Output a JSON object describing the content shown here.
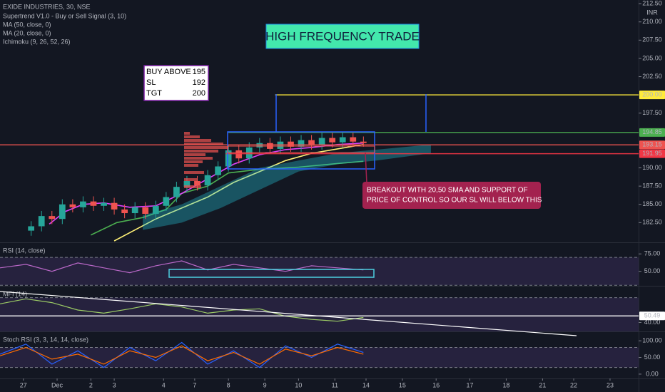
{
  "chart_data": [
    {
      "type": "candlestick",
      "title": "EXIDE INDUSTRIES, 30, NSE",
      "currency": "INR",
      "xlim": [
        0,
        246
      ],
      "ylim": [
        179.8,
        213
      ],
      "yticks": [
        {
          "value": 212.5,
          "label": "212.50"
        },
        {
          "value": 210,
          "label": "210.00"
        },
        {
          "value": 207.5,
          "label": "207.50"
        },
        {
          "value": 205,
          "label": "205.00"
        },
        {
          "value": 202.5,
          "label": "202.50"
        },
        {
          "value": 197.5,
          "label": "197.50"
        },
        {
          "value": 190,
          "label": "190.00"
        },
        {
          "value": 187.5,
          "label": "187.50"
        },
        {
          "value": 185,
          "label": "185.00"
        },
        {
          "value": 182.5,
          "label": "182.50"
        }
      ],
      "up_color": "#26a69a",
      "down_color": "#ef5350",
      "x": [
        12,
        16,
        20,
        24,
        28,
        32,
        36,
        40,
        44,
        48,
        52,
        56,
        60,
        64,
        68,
        72,
        76,
        80,
        84,
        88,
        92,
        96,
        100,
        104,
        108,
        112,
        116,
        120,
        124,
        128,
        132,
        136,
        140
      ],
      "open": [
        181.4,
        182.0,
        183.4,
        183.0,
        185.0,
        184.6,
        185.4,
        184.8,
        185.2,
        184.3,
        183.8,
        184.6,
        183.7,
        184.8,
        186.0,
        187.4,
        188.2,
        187.6,
        189.0,
        190.2,
        192.4,
        191.3,
        192.8,
        193.4,
        192.6,
        193.6,
        192.9,
        193.8,
        193.2,
        194.1,
        193.5,
        194.2,
        193.6
      ],
      "high": [
        182.7,
        184.1,
        184.1,
        185.7,
        185.7,
        186.1,
        186.1,
        185.9,
        185.9,
        185.0,
        185.3,
        185.3,
        185.5,
        186.7,
        188.1,
        188.9,
        188.9,
        189.7,
        190.9,
        193.1,
        193.1,
        193.5,
        194.1,
        194.1,
        194.3,
        194.3,
        194.5,
        194.5,
        194.8,
        194.8,
        194.9,
        194.9,
        194.3
      ],
      "low": [
        180.7,
        181.3,
        182.3,
        182.3,
        183.9,
        183.9,
        184.1,
        184.1,
        183.6,
        183.1,
        183.1,
        183.0,
        183.0,
        184.1,
        185.3,
        186.7,
        186.9,
        186.9,
        188.3,
        189.5,
        190.6,
        190.6,
        192.1,
        191.9,
        191.9,
        192.2,
        192.2,
        192.5,
        192.5,
        192.8,
        192.8,
        192.9,
        192.9
      ],
      "close": [
        182.0,
        183.4,
        183.0,
        185.0,
        184.6,
        185.4,
        184.8,
        185.2,
        184.3,
        183.8,
        184.6,
        183.7,
        184.8,
        186.0,
        187.4,
        188.2,
        187.6,
        189.0,
        190.2,
        192.4,
        191.3,
        192.8,
        193.4,
        192.6,
        193.6,
        192.9,
        193.8,
        193.2,
        194.1,
        193.5,
        194.2,
        193.6,
        193.4
      ],
      "series": [
        {
          "name": "Supertrend V1.0 - Buy or Sell Signal (3, 10)",
          "color": "#4caf50",
          "x": [
            35,
            45,
            55,
            64,
            70,
            80,
            88,
            100,
            115,
            130,
            140
          ],
          "values": [
            180.8,
            182.5,
            183.2,
            184.3,
            186.5,
            187.5,
            189.3,
            189.8,
            190.1,
            190.6,
            190.9
          ]
        },
        {
          "name": "MA (50, close, 0)",
          "color": "#fff176",
          "x": [
            44,
            52,
            60,
            70,
            80,
            90,
            100,
            110,
            120,
            130,
            140
          ],
          "values": [
            180,
            181.5,
            183,
            184.5,
            186,
            188,
            189.5,
            191,
            192,
            192.6,
            193.2
          ]
        },
        {
          "name": "MA (20, close, 0)",
          "color": "#e040fb",
          "x": [
            19,
            25,
            32,
            40,
            50,
            60,
            70,
            80,
            90,
            100,
            110,
            120,
            130,
            140
          ],
          "values": [
            182.3,
            184,
            185,
            185.2,
            184.6,
            184.8,
            186.5,
            188.5,
            190.5,
            191.8,
            192.5,
            192.8,
            193.2,
            193.4
          ]
        },
        {
          "name": "Ichimoku (9, 26, 52, 26)",
          "color": "#26c6da",
          "x": [
            55,
            70,
            85,
            100,
            115,
            130,
            145,
            166
          ],
          "values": [
            183.5,
            185,
            187.5,
            190,
            191,
            192,
            192.5,
            193.2
          ],
          "lower": [
            181.5,
            182.5,
            184.5,
            187,
            189.5,
            190.5,
            191,
            192
          ]
        }
      ],
      "levels": [
        {
          "value": 200,
          "label": "200.00",
          "color": "#ffeb3b",
          "from_x": 106
        },
        {
          "value": 194.85,
          "label": "194.85",
          "color": "#4caf50",
          "from_x": 88
        },
        {
          "value": 193.15,
          "label": "193.15",
          "color": "#ef5350",
          "from_x": 0
        },
        {
          "value": 191.95,
          "label": "191.95",
          "color": "#f23645",
          "from_x": 87
        }
      ],
      "annotations": {
        "headline": "HIGH FREQUENCY TRADE",
        "trade_box": [
          [
            "BUY ABOVE",
            "195"
          ],
          [
            "SL",
            "192"
          ],
          [
            "TGT",
            "200"
          ]
        ],
        "note": [
          "BREAKOUT WITH 20,50 SMA AND SUPPORT OF",
          "PRICE OF CONTROL SO OUR SL WILL BELOW THIS"
        ]
      }
    },
    {
      "type": "line",
      "title": "RSI (14, close)",
      "xlim": [
        0,
        246
      ],
      "ylim": [
        29.2,
        90.6
      ],
      "yticks": [
        {
          "value": 75,
          "label": "75.00"
        },
        {
          "value": 50,
          "label": "50.00"
        }
      ],
      "band": [
        30,
        70
      ],
      "series": [
        {
          "color": "#ba68c8",
          "x": [
            0,
            10,
            20,
            30,
            40,
            50,
            60,
            70,
            80,
            90,
            100,
            110,
            120,
            130,
            140
          ],
          "values": [
            55,
            60,
            50,
            62,
            55,
            48,
            58,
            65,
            52,
            60,
            55,
            50,
            58,
            55,
            52
          ]
        }
      ]
    },
    {
      "type": "line",
      "title": "MFI (14)",
      "xlim": [
        0,
        246
      ],
      "ylim": [
        25.6,
        97.9
      ],
      "yticks": [
        {
          "value": 40,
          "label": "40.00"
        }
      ],
      "band": [
        20,
        80
      ],
      "series": [
        {
          "color": "#9ccc65",
          "x": [
            0,
            10,
            20,
            30,
            40,
            50,
            60,
            70,
            80,
            90,
            100,
            110,
            120,
            130,
            140
          ],
          "values": [
            70,
            78,
            72,
            60,
            55,
            62,
            70,
            65,
            55,
            60,
            62,
            50,
            45,
            42,
            48
          ]
        }
      ],
      "levels": [
        {
          "value": 50.49,
          "label": "50.49",
          "color": "#ffffff",
          "from_x": 0
        }
      ]
    },
    {
      "type": "line",
      "title": "Stoch RSI (3, 3, 14, 14, close)",
      "xlim": [
        0,
        246
      ],
      "ylim": [
        -13,
        126
      ],
      "yticks": [
        {
          "value": 100,
          "label": "100.00"
        },
        {
          "value": 50,
          "label": "50.00"
        },
        {
          "value": 0,
          "label": "0.00"
        }
      ],
      "band": [
        20,
        80
      ],
      "series": [
        {
          "color": "#2962ff",
          "x": [
            0,
            10,
            20,
            30,
            40,
            50,
            60,
            70,
            80,
            90,
            100,
            110,
            120,
            130,
            140
          ],
          "values": [
            60,
            90,
            30,
            70,
            20,
            80,
            40,
            95,
            30,
            70,
            20,
            85,
            50,
            90,
            65
          ]
        },
        {
          "color": "#ff6d00",
          "x": [
            0,
            10,
            20,
            30,
            40,
            50,
            60,
            70,
            80,
            90,
            100,
            110,
            120,
            130,
            140
          ],
          "values": [
            55,
            80,
            45,
            60,
            30,
            70,
            50,
            85,
            40,
            65,
            30,
            75,
            55,
            80,
            60
          ]
        }
      ],
      "xticks": [
        {
          "value": 9,
          "label": "27"
        },
        {
          "value": 22,
          "label": "Dec"
        },
        {
          "value": 35,
          "label": "2"
        },
        {
          "value": 44,
          "label": "3"
        },
        {
          "value": 63,
          "label": "4"
        },
        {
          "value": 75,
          "label": "7"
        },
        {
          "value": 88,
          "label": "8"
        },
        {
          "value": 102,
          "label": "9"
        },
        {
          "value": 115,
          "label": "10"
        },
        {
          "value": 129,
          "label": "11"
        },
        {
          "value": 141,
          "label": "14"
        },
        {
          "value": 155,
          "label": "15"
        },
        {
          "value": 168,
          "label": "16"
        },
        {
          "value": 181,
          "label": "17"
        },
        {
          "value": 195,
          "label": "18"
        },
        {
          "value": 209,
          "label": "21"
        },
        {
          "value": 221,
          "label": "22"
        },
        {
          "value": 235,
          "label": "23"
        }
      ]
    }
  ]
}
